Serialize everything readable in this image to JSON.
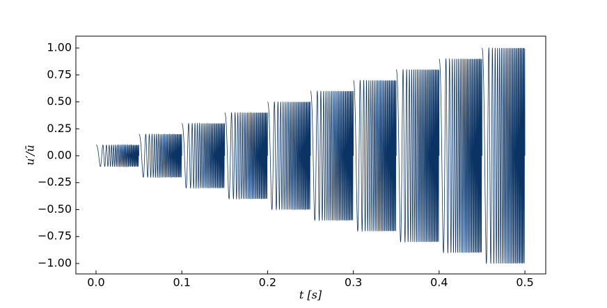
{
  "chart_data": {
    "type": "line",
    "xlabel": "t [s]",
    "ylabel": "u′/ū",
    "color": "#0b3464",
    "f0": 50,
    "f1": 1000,
    "segments": [
      {
        "t0": 0.0,
        "t1": 0.05,
        "amplitude": 0.1
      },
      {
        "t0": 0.05,
        "t1": 0.1,
        "amplitude": 0.2
      },
      {
        "t0": 0.1,
        "t1": 0.15,
        "amplitude": 0.3
      },
      {
        "t0": 0.15,
        "t1": 0.2,
        "amplitude": 0.4
      },
      {
        "t0": 0.2,
        "t1": 0.25,
        "amplitude": 0.5
      },
      {
        "t0": 0.25,
        "t1": 0.3,
        "amplitude": 0.6
      },
      {
        "t0": 0.3,
        "t1": 0.35,
        "amplitude": 0.7
      },
      {
        "t0": 0.35,
        "t1": 0.4,
        "amplitude": 0.8
      },
      {
        "t0": 0.4,
        "t1": 0.45,
        "amplitude": 0.9
      },
      {
        "t0": 0.45,
        "t1": 0.5,
        "amplitude": 1.0
      }
    ],
    "xlim": [
      -0.0235,
      0.5243
    ],
    "xticks": [
      {
        "value": 0,
        "label": "0.0"
      },
      {
        "value": 0.1,
        "label": "0.1"
      },
      {
        "value": 0.2,
        "label": "0.2"
      },
      {
        "value": 0.3,
        "label": "0.3"
      },
      {
        "value": 0.4,
        "label": "0.4"
      },
      {
        "value": 0.5,
        "label": "0.5"
      }
    ],
    "ylim": [
      -1.097,
      1.11
    ],
    "yticks": [
      {
        "value": -1,
        "label": "−1.00"
      },
      {
        "value": -0.75,
        "label": "−0.75"
      },
      {
        "value": -0.5,
        "label": "−0.50"
      },
      {
        "value": -0.25,
        "label": "−0.25"
      },
      {
        "value": 0,
        "label": "0.00"
      },
      {
        "value": 0.25,
        "label": "0.25"
      },
      {
        "value": 0.5,
        "label": "0.50"
      },
      {
        "value": 0.75,
        "label": "0.75"
      },
      {
        "value": 1,
        "label": "1.00"
      }
    ]
  }
}
